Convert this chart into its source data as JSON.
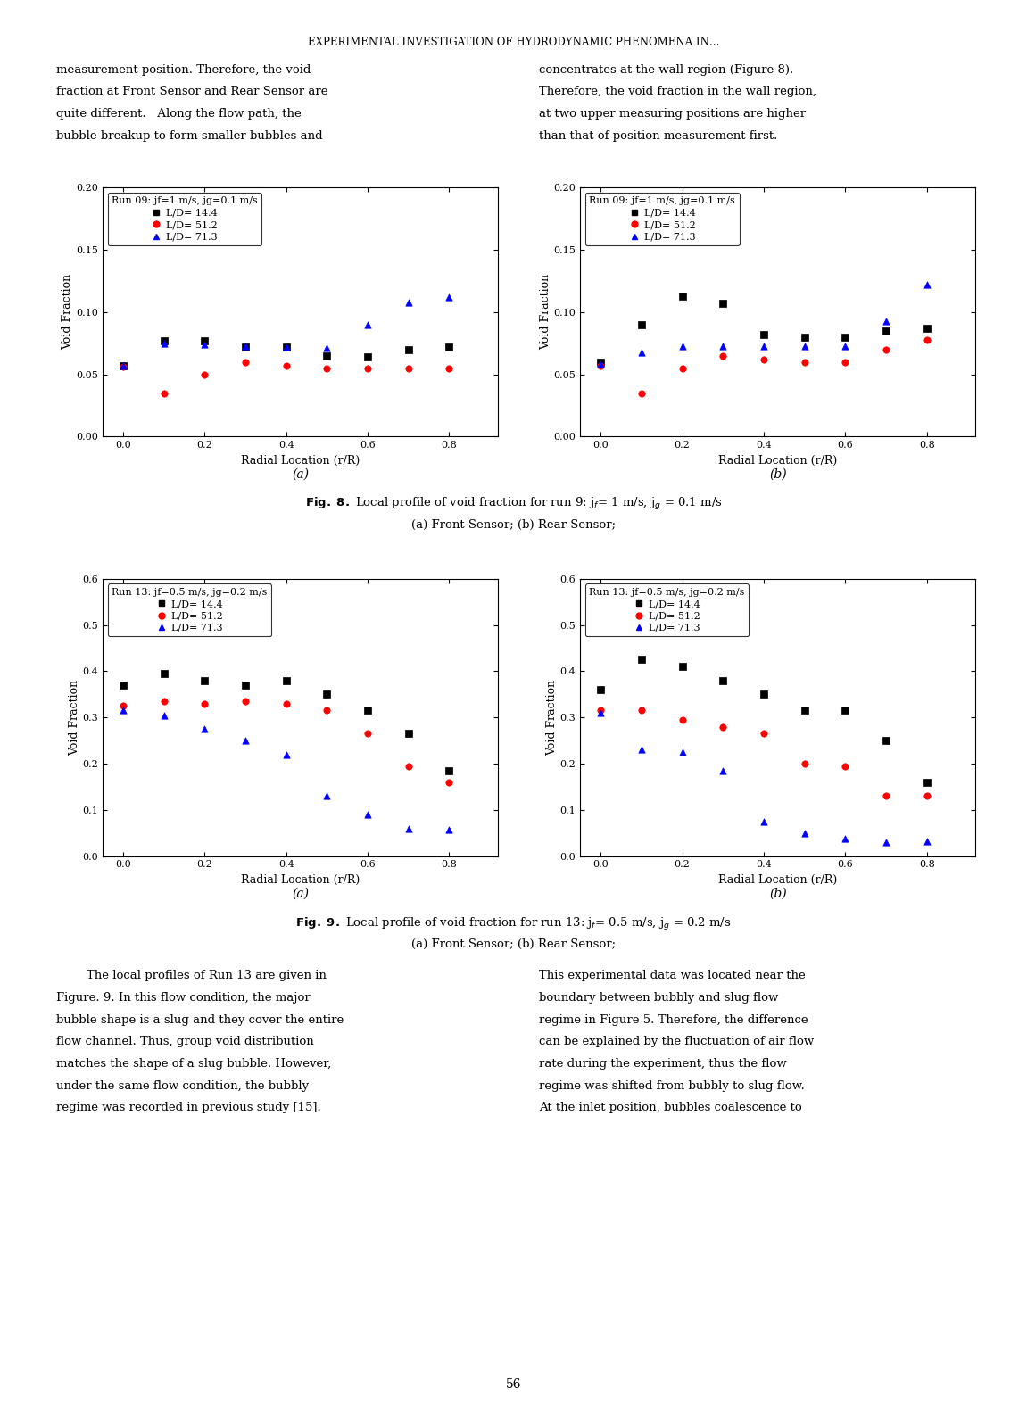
{
  "title": "EXPERIMENTAL INVESTIGATION OF HYDRODYNAMIC PHENOMENA IN…",
  "title_fontsize": 8.5,
  "xlabel": "Radial Location (r/R)",
  "ylabel": "Void Fraction",
  "fig8a_legend_title": "Run 09: jf=1 m/s, jg=0.1 m/s",
  "fig9a_legend_title": "Run 13: jf=0.5 m/s, jg=0.2 m/s",
  "legend_labels": [
    "L/D= 14.4",
    "L/D= 51.2",
    "L/D= 71.3"
  ],
  "legend_colors": [
    "black",
    "red",
    "blue"
  ],
  "legend_markers": [
    "s",
    "o",
    "^"
  ],
  "fig8_ylim": [
    0.0,
    0.2
  ],
  "fig8_yticks": [
    0.0,
    0.05,
    0.1,
    0.15,
    0.2
  ],
  "fig9_ylim": [
    0.0,
    0.6
  ],
  "fig9_yticks": [
    0.0,
    0.1,
    0.2,
    0.3,
    0.4,
    0.5,
    0.6
  ],
  "xlim": [
    -0.05,
    0.92
  ],
  "xticks": [
    0.0,
    0.2,
    0.4,
    0.6,
    0.8
  ],
  "fig8a_LD144_x": [
    0.0,
    0.1,
    0.2,
    0.3,
    0.4,
    0.5,
    0.6,
    0.7,
    0.8
  ],
  "fig8a_LD144_y": [
    0.057,
    0.077,
    0.077,
    0.072,
    0.072,
    0.065,
    0.064,
    0.07,
    0.072
  ],
  "fig8a_LD512_x": [
    0.0,
    0.1,
    0.2,
    0.3,
    0.4,
    0.5,
    0.6,
    0.7,
    0.8
  ],
  "fig8a_LD512_y": [
    0.056,
    0.035,
    0.05,
    0.06,
    0.057,
    0.055,
    0.055,
    0.055,
    0.055
  ],
  "fig8a_LD713_x": [
    0.0,
    0.1,
    0.2,
    0.3,
    0.4,
    0.5,
    0.6,
    0.7,
    0.8
  ],
  "fig8a_LD713_y": [
    0.057,
    0.075,
    0.074,
    0.073,
    0.072,
    0.071,
    0.09,
    0.108,
    0.112
  ],
  "fig8b_LD144_x": [
    0.0,
    0.1,
    0.2,
    0.3,
    0.4,
    0.5,
    0.6,
    0.7,
    0.8
  ],
  "fig8b_LD144_y": [
    0.06,
    0.09,
    0.113,
    0.107,
    0.082,
    0.08,
    0.08,
    0.085,
    0.087
  ],
  "fig8b_LD512_x": [
    0.0,
    0.1,
    0.2,
    0.3,
    0.4,
    0.5,
    0.6,
    0.7,
    0.8
  ],
  "fig8b_LD512_y": [
    0.057,
    0.035,
    0.055,
    0.065,
    0.062,
    0.06,
    0.06,
    0.07,
    0.078
  ],
  "fig8b_LD713_x": [
    0.0,
    0.1,
    0.2,
    0.3,
    0.4,
    0.5,
    0.6,
    0.7,
    0.8
  ],
  "fig8b_LD713_y": [
    0.058,
    0.068,
    0.073,
    0.073,
    0.073,
    0.073,
    0.073,
    0.093,
    0.122
  ],
  "fig9a_LD144_x": [
    0.0,
    0.1,
    0.2,
    0.3,
    0.4,
    0.5,
    0.6,
    0.7,
    0.8
  ],
  "fig9a_LD144_y": [
    0.37,
    0.395,
    0.38,
    0.37,
    0.38,
    0.35,
    0.315,
    0.265,
    0.185
  ],
  "fig9a_LD512_x": [
    0.0,
    0.1,
    0.2,
    0.3,
    0.4,
    0.5,
    0.6,
    0.7,
    0.8
  ],
  "fig9a_LD512_y": [
    0.325,
    0.335,
    0.33,
    0.335,
    0.33,
    0.315,
    0.265,
    0.195,
    0.16
  ],
  "fig9a_LD713_x": [
    0.0,
    0.1,
    0.2,
    0.3,
    0.4,
    0.5,
    0.6,
    0.7,
    0.8
  ],
  "fig9a_LD713_y": [
    0.315,
    0.305,
    0.275,
    0.25,
    0.22,
    0.13,
    0.09,
    0.06,
    0.058
  ],
  "fig9b_LD144_x": [
    0.0,
    0.1,
    0.2,
    0.3,
    0.4,
    0.5,
    0.6,
    0.7,
    0.8
  ],
  "fig9b_LD144_y": [
    0.36,
    0.425,
    0.41,
    0.38,
    0.35,
    0.315,
    0.315,
    0.25,
    0.16
  ],
  "fig9b_LD512_x": [
    0.0,
    0.1,
    0.2,
    0.3,
    0.4,
    0.5,
    0.6,
    0.7,
    0.8
  ],
  "fig9b_LD512_y": [
    0.315,
    0.315,
    0.295,
    0.28,
    0.265,
    0.2,
    0.195,
    0.13,
    0.13
  ],
  "fig9b_LD713_x": [
    0.0,
    0.1,
    0.2,
    0.3,
    0.4,
    0.5,
    0.6,
    0.7,
    0.8
  ],
  "fig9b_LD713_y": [
    0.31,
    0.23,
    0.225,
    0.185,
    0.075,
    0.05,
    0.038,
    0.03,
    0.032
  ],
  "text_left_col": [
    "measurement position. Therefore, the void",
    "fraction at Front Sensor and Rear Sensor are",
    "quite different.   Along the flow path, the",
    "bubble breakup to form smaller bubbles and"
  ],
  "text_right_col": [
    "concentrates at the wall region (Figure 8).",
    "Therefore, the void fraction in the wall region,",
    "at two upper measuring positions are higher",
    "than that of position measurement first."
  ],
  "text_bottom_left": [
    "        The local profiles of Run 13 are given in",
    "Figure. 9. In this flow condition, the major",
    "bubble shape is a slug and they cover the entire",
    "flow channel. Thus, group void distribution",
    "matches the shape of a slug bubble. However,",
    "under the same flow condition, the bubbly",
    "regime was recorded in previous study [15]."
  ],
  "text_bottom_right": [
    "This experimental data was located near the",
    "boundary between bubbly and slug flow",
    "regime in Figure 5. Therefore, the difference",
    "can be explained by the fluctuation of air flow",
    "rate during the experiment, thus the flow",
    "regime was shifted from bubbly to slug flow.",
    "At the inlet position, bubbles coalescence to"
  ],
  "page_number": "56"
}
